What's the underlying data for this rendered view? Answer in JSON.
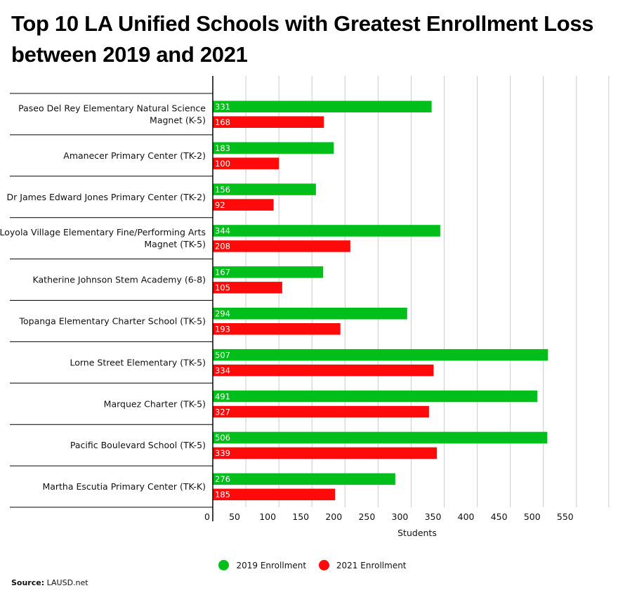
{
  "title": "Top 10 LA Unified Schools with Greatest Enrollment Loss between 2019 and 2021",
  "source_label": "Source:",
  "source_value": "LAUSD.net",
  "colors": {
    "series_2019": "#00bf1b",
    "series_2021": "#ff0a0a",
    "grid": "#cccccc",
    "axis": "#000000"
  },
  "chart_data": {
    "type": "bar",
    "orientation": "horizontal",
    "title": "Top 10 LA Unified Schools with Greatest Enrollment Loss between 2019 and 2021",
    "xlabel": "Students",
    "ylabel": "",
    "xlim": [
      0,
      550
    ],
    "xticks": [
      0,
      50,
      100,
      150,
      200,
      250,
      300,
      350,
      400,
      450,
      500,
      550
    ],
    "grid": true,
    "legend_position": "bottom",
    "categories": [
      [
        "Paseo Del Rey Elementary Natural Science",
        "Magnet (K-5)"
      ],
      [
        "Amanecer Primary Center (TK-2)"
      ],
      [
        "Dr James Edward Jones Primary Center (TK-2)"
      ],
      [
        "Loyola Village Elementary Fine/Performing Arts",
        "Magnet (TK-5)"
      ],
      [
        "Katherine Johnson Stem Academy (6-8)"
      ],
      [
        "Topanga Elementary Charter School (TK-5)"
      ],
      [
        "Lorne Street Elementary (TK-5)"
      ],
      [
        "Marquez Charter (TK-5)"
      ],
      [
        "Pacific Boulevard School (TK-5)"
      ],
      [
        "Martha Escutia Primary Center (TK-K)"
      ]
    ],
    "series": [
      {
        "name": "2019 Enrollment",
        "values": [
          331,
          183,
          156,
          344,
          167,
          294,
          507,
          491,
          506,
          276
        ]
      },
      {
        "name": "2021 Enrollment",
        "values": [
          168,
          100,
          92,
          208,
          105,
          193,
          334,
          327,
          339,
          185
        ]
      }
    ]
  }
}
